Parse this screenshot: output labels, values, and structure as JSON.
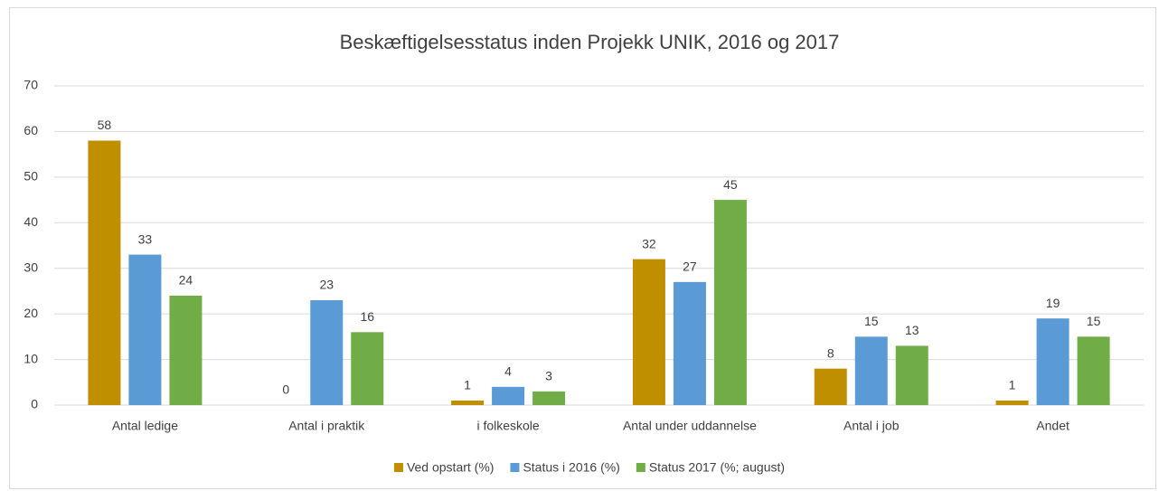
{
  "chart_data": {
    "type": "bar",
    "title": "Beskæftigelsesstatus inden Projekk UNIK, 2016 og 2017",
    "categories": [
      "Antal ledige",
      "Antal i praktik",
      "i folkeskole",
      "Antal under uddannelse",
      "Antal i job",
      "Andet"
    ],
    "series": [
      {
        "name": "Ved opstart (%)",
        "color": "#bf8f00",
        "values": [
          58,
          0,
          1,
          32,
          8,
          1
        ]
      },
      {
        "name": "Status i 2016 (%)",
        "color": "#5b9bd5",
        "values": [
          33,
          23,
          4,
          27,
          15,
          19
        ]
      },
      {
        "name": "Status 2017 (%; august)",
        "color": "#70ad47",
        "values": [
          24,
          16,
          3,
          45,
          13,
          15
        ]
      }
    ],
    "ylim": [
      0,
      70
    ],
    "yticks": [
      0,
      10,
      20,
      30,
      40,
      50,
      60,
      70
    ],
    "grid": true,
    "legend": "bottom"
  }
}
